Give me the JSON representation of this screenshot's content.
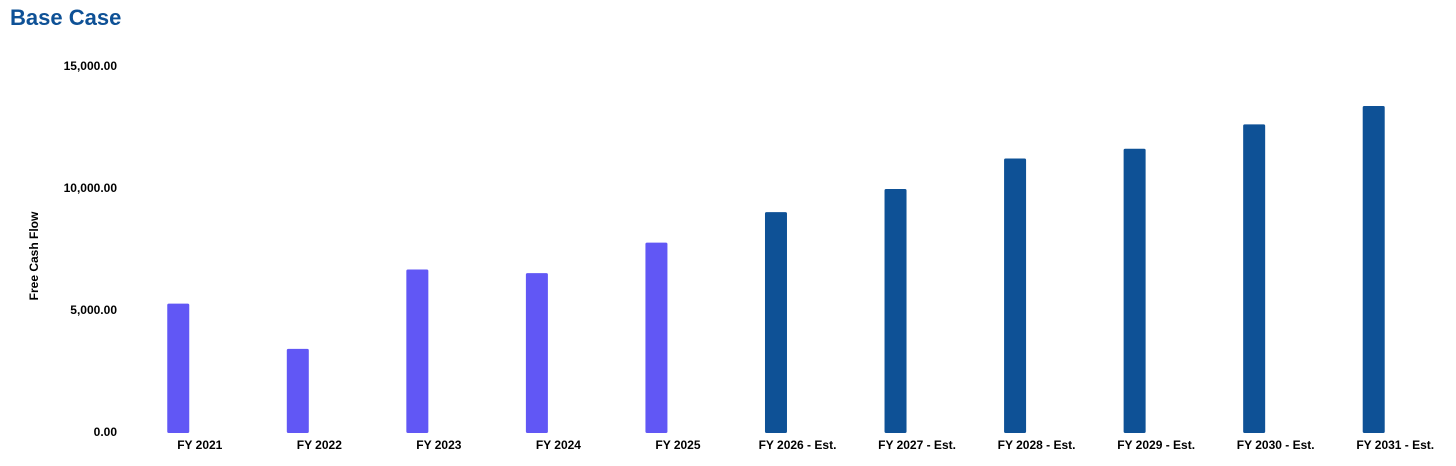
{
  "chart_data": {
    "type": "bar",
    "title": "Base Case",
    "y_label": "Free Cash Flow",
    "categories": [
      "FY 2021",
      "FY 2022",
      "FY 2023",
      "FY 2024",
      "FY 2025",
      "FY 2026 - Est.",
      "FY 2027 - Est.",
      "FY 2028 - Est.",
      "FY 2029 - Est.",
      "FY 2030 - Est.",
      "FY 2031 - Est."
    ],
    "values": [
      5300,
      3450,
      6700,
      6550,
      7800,
      9050,
      10000,
      11250,
      11650,
      12650,
      13400
    ],
    "colors": [
      "#6157f5",
      "#6157f5",
      "#6157f5",
      "#6157f5",
      "#6157f5",
      "#0e5196",
      "#0e5196",
      "#0e5196",
      "#0e5196",
      "#0e5196",
      "#0e5196"
    ],
    "ylim": [
      0,
      15000
    ],
    "yticks": [
      {
        "value": 0,
        "label": "0.00"
      },
      {
        "value": 5000,
        "label": "5,000.00"
      },
      {
        "value": 10000,
        "label": "10,000.00"
      },
      {
        "value": 15000,
        "label": "15,000.00"
      }
    ],
    "grid": false
  }
}
